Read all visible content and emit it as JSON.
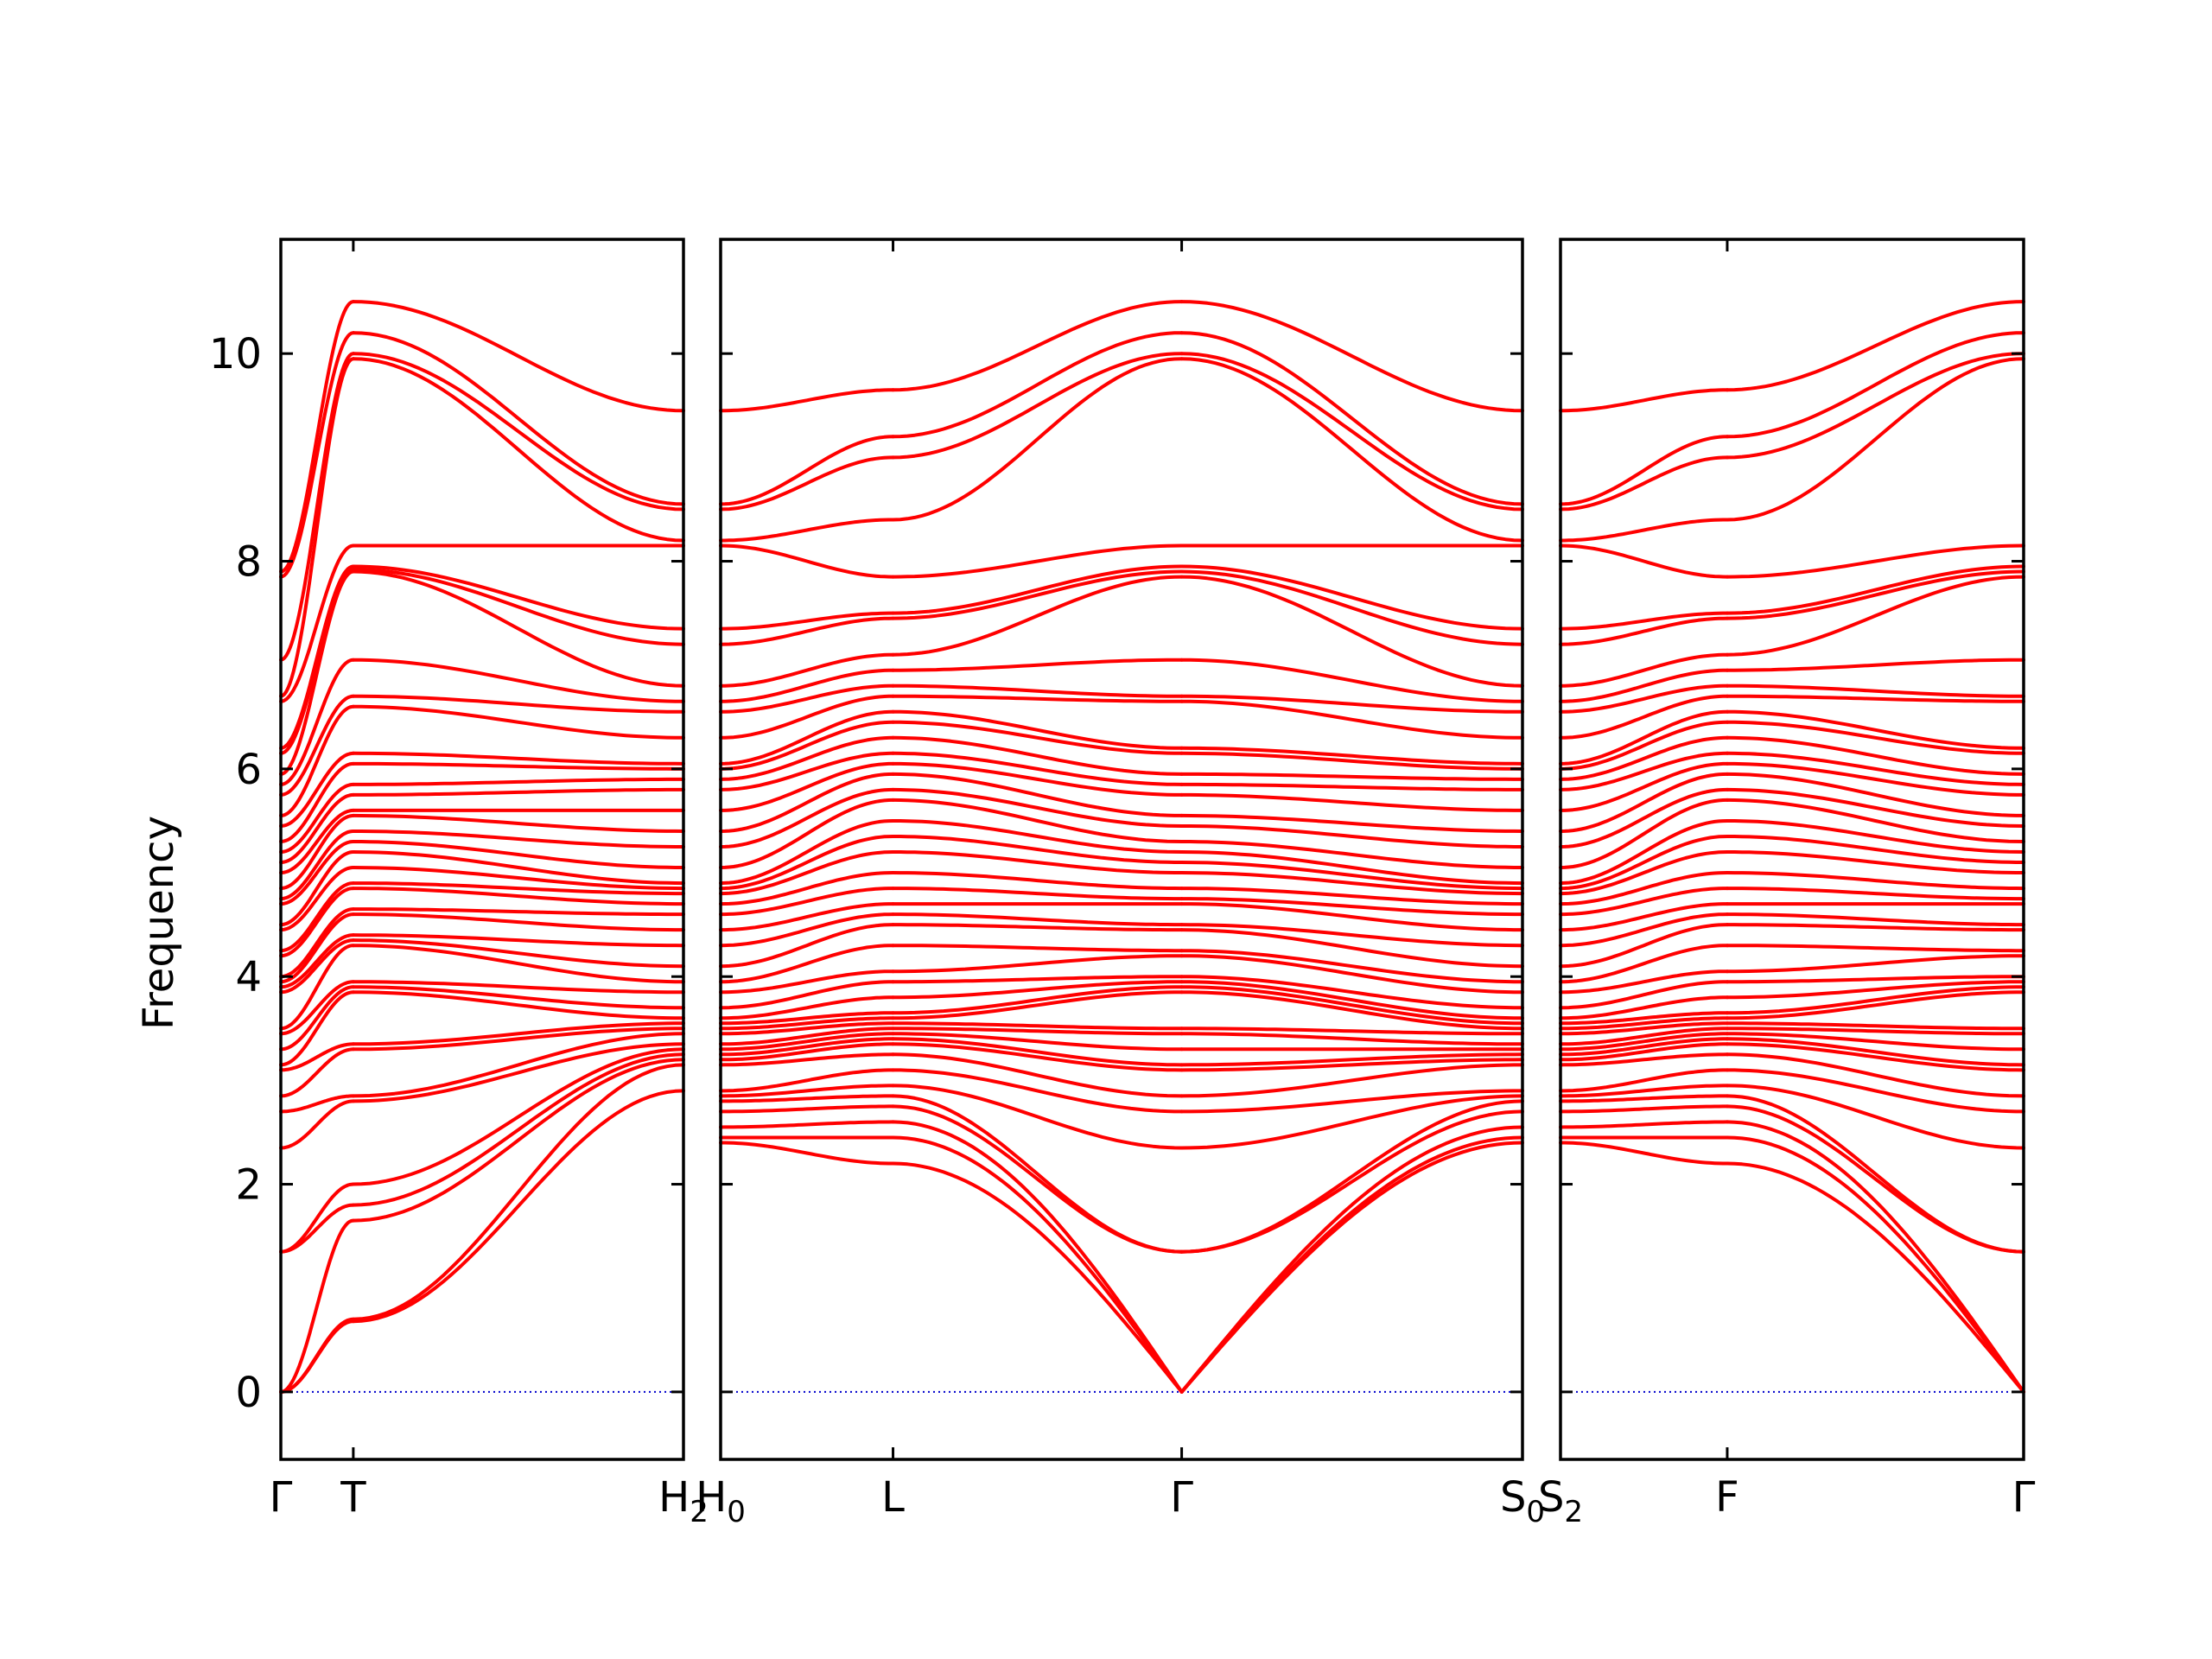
{
  "chart_data": {
    "type": "line",
    "title": "",
    "ylabel": "Frequency",
    "ylim": [
      -0.65,
      11.1
    ],
    "yticks": [
      "0",
      "2",
      "4",
      "6",
      "8",
      "10"
    ],
    "ytick_values": [
      0,
      2,
      4,
      6,
      8,
      10
    ],
    "grid": false,
    "colors": {
      "bands": "#ff0000",
      "zero_line": "#0000cc",
      "frame": "#000000"
    },
    "panels": [
      {
        "id": "panel-1",
        "xticks": [
          {
            "label": "Γ",
            "sub": "",
            "pos": 0.0
          },
          {
            "label": "T",
            "sub": "",
            "pos": 0.18
          },
          {
            "label": "H",
            "sub": "2",
            "pos": 1.0
          }
        ],
        "endpoints": {
          "start": "Γ",
          "end": "H2"
        }
      },
      {
        "id": "panel-2",
        "xticks": [
          {
            "label": "H",
            "sub": "0",
            "pos": 0.0
          },
          {
            "label": "L",
            "sub": "",
            "pos": 0.215
          },
          {
            "label": "Γ",
            "sub": "",
            "pos": 0.575
          },
          {
            "label": "S",
            "sub": "0",
            "pos": 1.0
          }
        ],
        "endpoints": {
          "start": "H0",
          "end": "S0"
        }
      },
      {
        "id": "panel-3",
        "xticks": [
          {
            "label": "S",
            "sub": "2",
            "pos": 0.0
          },
          {
            "label": "F",
            "sub": "",
            "pos": 0.36
          },
          {
            "label": "Γ",
            "sub": "",
            "pos": 1.0
          }
        ],
        "endpoints": {
          "start": "S2",
          "end": "Γ"
        }
      }
    ],
    "gamma_optical_frequencies": [
      0,
      0,
      0,
      1.35,
      1.35,
      2.35,
      2.7,
      2.85,
      3.1,
      3.15,
      3.3,
      3.45,
      3.5,
      3.85,
      3.9,
      3.95,
      4.0,
      4.2,
      4.25,
      4.45,
      4.5,
      4.7,
      4.75,
      4.85,
      5.0,
      5.1,
      5.2,
      5.3,
      5.45,
      5.55,
      5.75,
      5.85,
      5.95,
      6.15,
      6.2,
      6.65,
      6.7,
      7.05,
      7.85,
      7.9,
      7.95,
      8.15,
      9.95,
      10.0,
      10.2,
      10.5
    ],
    "H_frequencies": [
      2.4,
      2.45,
      2.55,
      2.7,
      2.8,
      2.85,
      2.9,
      3.15,
      3.2,
      3.25,
      3.3,
      3.35,
      3.45,
      3.5,
      3.55,
      3.6,
      3.7,
      3.85,
      3.95,
      4.1,
      4.3,
      4.45,
      4.6,
      4.7,
      4.8,
      4.85,
      4.9,
      5.05,
      5.25,
      5.4,
      5.6,
      5.8,
      5.9,
      6.0,
      6.05,
      6.3,
      6.55,
      6.65,
      6.8,
      7.2,
      7.35,
      8.15,
      8.2,
      8.5,
      8.55,
      9.45
    ],
    "L_frequencies": [
      2.2,
      2.45,
      2.6,
      2.75,
      2.85,
      2.95,
      3.1,
      3.25,
      3.35,
      3.4,
      3.45,
      3.5,
      3.55,
      3.6,
      3.65,
      3.8,
      3.95,
      4.05,
      4.3,
      4.5,
      4.6,
      4.7,
      4.85,
      5.0,
      5.2,
      5.35,
      5.5,
      5.7,
      5.8,
      5.95,
      6.05,
      6.15,
      6.3,
      6.45,
      6.55,
      6.7,
      6.8,
      6.95,
      7.1,
      7.45,
      7.5,
      7.85,
      8.4,
      9.0,
      9.2,
      9.65
    ],
    "T_frequencies": [
      0.68,
      0.7,
      1.65,
      1.8,
      2.0,
      2.8,
      2.85,
      3.3,
      3.35,
      3.85,
      3.9,
      3.95,
      4.3,
      4.35,
      4.4,
      4.6,
      4.65,
      4.85,
      4.9,
      5.05,
      5.2,
      5.3,
      5.4,
      5.55,
      5.6,
      5.75,
      5.85,
      6.05,
      6.15,
      6.6,
      6.7,
      7.05,
      7.9,
      7.92,
      7.95,
      8.15,
      9.95,
      10.0,
      10.2,
      10.5
    ],
    "F_frequencies": [
      2.2,
      2.45,
      2.6,
      2.75,
      2.85,
      2.95,
      3.1,
      3.25,
      3.35,
      3.4,
      3.45,
      3.5,
      3.55,
      3.6,
      3.65,
      3.8,
      3.95,
      4.05,
      4.3,
      4.5,
      4.6,
      4.7,
      4.85,
      5.0,
      5.2,
      5.35,
      5.5,
      5.7,
      5.8,
      5.95,
      6.05,
      6.15,
      6.3,
      6.45,
      6.55,
      6.7,
      6.8,
      6.95,
      7.1,
      7.45,
      7.5,
      7.85,
      8.4,
      9.0,
      9.2,
      9.65
    ]
  }
}
